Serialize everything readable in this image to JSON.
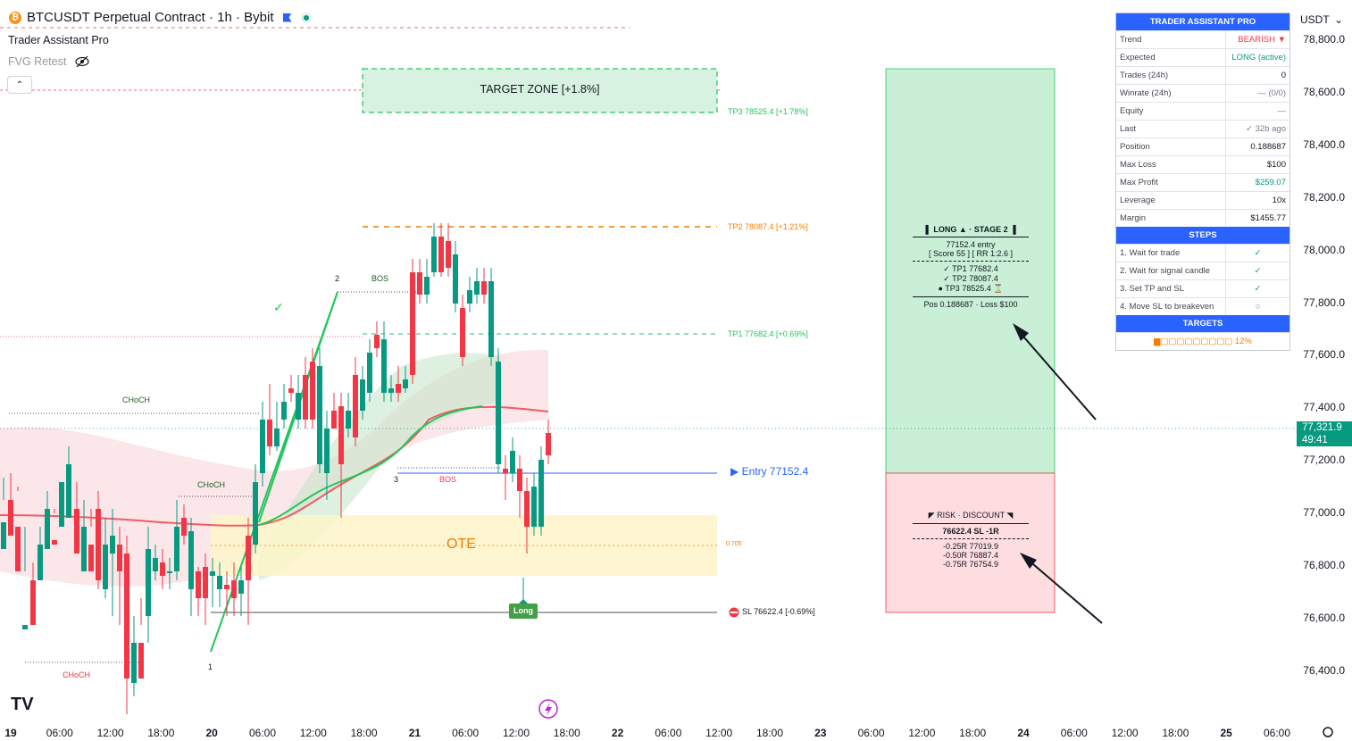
{
  "header": {
    "symbol_title": "BTCUSDT Perpetual Contract · 1h · Bybit",
    "coin_glyph": "₿",
    "indicator_1": "Trader Assistant Pro",
    "indicator_2": "FVG Retest",
    "collapse_glyph": "⌃",
    "eye_icon": "eye-off-icon"
  },
  "currency_selector": {
    "label": "USDT",
    "glyph": "⌄"
  },
  "y_axis_labels": [
    "78,800.0",
    "78,600.0",
    "78,400.0",
    "78,200.0",
    "78,000.0",
    "77,800.0",
    "77,600.0",
    "77,400.0",
    "77,200.0",
    "77,000.0",
    "76,800.0",
    "76,600.0",
    "76,400.0"
  ],
  "current_price": {
    "price": "77,321.9",
    "countdown": "49:41"
  },
  "x_axis_labels": [
    "19",
    "06:00",
    "12:00",
    "18:00",
    "20",
    "06:00",
    "12:00",
    "18:00",
    "21",
    "06:00",
    "12:00",
    "18:00",
    "22",
    "06:00",
    "12:00",
    "18:00",
    "23",
    "06:00",
    "12:00",
    "18:00",
    "24",
    "06:00",
    "12:00",
    "18:00",
    "25",
    "06:00"
  ],
  "chart_labels": {
    "target_zone": "TARGET ZONE [+1.8%]",
    "tp3": "TP3 78525.4 [+1.78%]",
    "tp2": "TP2 78087.4 [+1.21%]",
    "tp1": "TP1 77682.4 [+0.69%]",
    "entry": "▶ Entry 77152.4",
    "sl": "SL 76622.4 [-0.69%]",
    "ote": "OTE",
    "fib": "0.705",
    "long_badge": "Long",
    "choch_1": "CHoCH",
    "choch_2": "CHoCH",
    "choch_3": "CHoCH",
    "bos_1": "BOS",
    "bos_2": "BOS",
    "wave_1": "1",
    "wave_2": "2",
    "wave_3": "3",
    "check": "✓"
  },
  "long_box": {
    "title": "▌ LONG ▲ · STAGE 2 ▐",
    "entry": "77152.4  entry",
    "score": "[ Score 55 ] [ RR 1:2.6 ]",
    "tp1": "✓ TP1   77682.4",
    "tp2": "✓ TP2   78087.4",
    "tp3": "● TP3   78525.4",
    "tp3_mark": "⌛",
    "pos": "Pos 0.188687 · Loss $100"
  },
  "risk_box": {
    "title": "◤ RISK · DISCOUNT ◥",
    "sl": "76622.4 SL  -1R",
    "r1": "-0.25R   77019.9",
    "r2": "-0.50R   76887.4",
    "r3": "-0.75R   76754.9"
  },
  "assistant_table": {
    "title": "TRADER ASSISTANT PRO",
    "rows": [
      {
        "k": "Trend",
        "v": "BEARISH ▼"
      },
      {
        "k": "Expected",
        "v": "LONG (active)"
      },
      {
        "k": "Trades (24h)",
        "v": "0"
      },
      {
        "k": "Winrate (24h)",
        "v": "— (0/0)"
      },
      {
        "k": "Equity",
        "v": "—"
      },
      {
        "k": "Last",
        "v": "✓ 32b ago"
      },
      {
        "k": "Position",
        "v": "0.188687"
      },
      {
        "k": "Max Loss",
        "v": "$100"
      },
      {
        "k": "Max Profit",
        "v": "$259.07"
      },
      {
        "k": "Leverage",
        "v": "10x"
      },
      {
        "k": "Margin",
        "v": "$1455.77"
      }
    ],
    "steps_title": "STEPS",
    "steps": [
      {
        "k": "1. Wait for trade",
        "v": "✓"
      },
      {
        "k": "2. Wait for signal candle",
        "v": "✓"
      },
      {
        "k": "3. Set TP and SL",
        "v": "✓"
      },
      {
        "k": "4. Move SL to breakeven",
        "v": "○"
      }
    ],
    "targets_title": "TARGETS",
    "targets_progress": "▆▢▢▢▢▢▢▢▢▢  12%"
  },
  "colors": {
    "up": "#089981",
    "down": "#f23645",
    "accent": "#2962ff"
  }
}
